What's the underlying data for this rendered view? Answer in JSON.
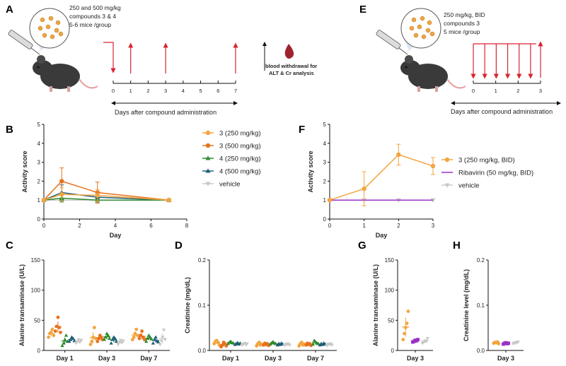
{
  "panel_letters": {
    "a": "A",
    "b": "B",
    "c": "C",
    "d": "D",
    "e": "E",
    "f": "F",
    "g": "G",
    "h": "H"
  },
  "schematic_a": {
    "dose_text": "250 and 500 mg/kg",
    "compound_text": "compounds 3 & 4",
    "group_text": "5-6 mice /group",
    "timeline_ticks": [
      "0",
      "1",
      "2",
      "3",
      "4",
      "5",
      "6",
      "7"
    ],
    "blood_text_1": "blood withdrawal for",
    "blood_text_2": "ALT & Cr analysis",
    "caption": "Days after compound administration"
  },
  "schematic_e": {
    "dose_text": "250 mg/kg, BID",
    "compound_text": "compounds 3",
    "group_text": "5 mice /group",
    "timeline_ticks": [
      "0",
      "1",
      "2",
      "3"
    ],
    "caption": "Days after compound administration"
  },
  "chart_data": [
    {
      "id": "B",
      "type": "line",
      "xlabel": "Day",
      "ylabel": "Activity score",
      "xlim": [
        0,
        8
      ],
      "ylim": [
        0,
        5
      ],
      "xticks": [
        "0",
        "2",
        "4",
        "6",
        "8"
      ],
      "yticks": [
        "0",
        "1",
        "2",
        "3",
        "4",
        "5"
      ],
      "series": [
        {
          "name": "3 (250 mg/kg)",
          "color": "#f2a541",
          "marker": "circle",
          "x": [
            0,
            1,
            3,
            7
          ],
          "y": [
            1,
            1.3,
            1.25,
            1
          ],
          "err": [
            0,
            0.35,
            0.3,
            0
          ]
        },
        {
          "name": "3 (500 mg/kg)",
          "color": "#e8711c",
          "marker": "circle",
          "x": [
            0,
            1,
            3,
            7
          ],
          "y": [
            1,
            2.0,
            1.4,
            1
          ],
          "err": [
            0,
            0.7,
            0.55,
            0
          ]
        },
        {
          "name": "4 (250 mg/kg)",
          "color": "#2e8b2e",
          "marker": "triangle",
          "x": [
            0,
            1,
            3,
            7
          ],
          "y": [
            1,
            1.1,
            1.0,
            1
          ],
          "err": [
            0,
            0.2,
            0.15,
            0
          ]
        },
        {
          "name": "4 (500 mg/kg)",
          "color": "#1f5f74",
          "marker": "triangle",
          "x": [
            0,
            1,
            3,
            7
          ],
          "y": [
            1,
            1.4,
            1.15,
            1
          ],
          "err": [
            0,
            0.4,
            0.3,
            0
          ]
        },
        {
          "name": "vehicle",
          "color": "#c8c8c8",
          "marker": "down-triangle",
          "x": [
            0,
            1,
            3,
            7
          ],
          "y": [
            1,
            1.0,
            1.0,
            1
          ],
          "err": [
            0,
            0.05,
            0.05,
            0
          ]
        }
      ]
    },
    {
      "id": "F",
      "type": "line",
      "xlabel": "Day",
      "ylabel": "Activity score",
      "xlim": [
        0,
        3
      ],
      "ylim": [
        0,
        5
      ],
      "xticks": [
        "0",
        "1",
        "2",
        "3"
      ],
      "yticks": [
        "0",
        "1",
        "2",
        "3",
        "4",
        "5"
      ],
      "series": [
        {
          "name": "3 (250 mg/kg, BID)",
          "color": "#f2a541",
          "marker": "circle",
          "x": [
            0,
            1,
            2,
            3
          ],
          "y": [
            1,
            1.6,
            3.4,
            2.8
          ],
          "err": [
            0,
            0.9,
            0.55,
            0.45
          ]
        },
        {
          "name": "Ribavirin (50 mg/kg, BID)",
          "color": "#9b30c9",
          "marker": "none",
          "x": [
            0,
            1,
            2,
            3
          ],
          "y": [
            1,
            1,
            1,
            1
          ],
          "err": [
            0,
            0,
            0,
            0
          ]
        },
        {
          "name": "vehicle",
          "color": "#c8c8c8",
          "marker": "down-triangle",
          "x": [
            0,
            1,
            2,
            3
          ],
          "y": [
            1,
            1,
            1,
            1
          ],
          "err": [
            0,
            0,
            0,
            0
          ]
        }
      ]
    },
    {
      "id": "C",
      "type": "scatter",
      "ylabel": "Alanine transaminase (U/L)",
      "ylim": [
        0,
        150
      ],
      "yticks": [
        "0",
        "50",
        "100",
        "150"
      ],
      "groups": [
        "Day 1",
        "Day 3",
        "Day 7"
      ],
      "series_colors": [
        "#f2a541",
        "#e8711c",
        "#2e8b2e",
        "#1f5f74",
        "#c8c8c8"
      ],
      "series_markers": [
        "circle",
        "circle",
        "triangle",
        "triangle",
        "down-triangle"
      ],
      "points": [
        [
          [
            22,
            28,
            30,
            35,
            25
          ],
          [
            32,
            40,
            55,
            38,
            30
          ],
          [
            8,
            12,
            18,
            25,
            15
          ],
          [
            15,
            18,
            22,
            20,
            16
          ],
          [
            12,
            15,
            18,
            14,
            17
          ]
        ],
        [
          [
            10,
            15,
            22,
            38,
            20
          ],
          [
            15,
            20,
            25,
            22,
            18
          ],
          [
            18,
            22,
            28,
            25,
            20
          ],
          [
            12,
            18,
            22,
            20,
            15
          ],
          [
            10,
            14,
            17,
            13,
            16
          ]
        ],
        [
          [
            18,
            22,
            28,
            35,
            25
          ],
          [
            20,
            25,
            32,
            22,
            18
          ],
          [
            15,
            20,
            25,
            22,
            19
          ],
          [
            12,
            18,
            22,
            16,
            14
          ],
          [
            10,
            16,
            22,
            34,
            18
          ]
        ]
      ]
    },
    {
      "id": "D",
      "type": "scatter",
      "ylabel": "Creatinine (mg/dL)",
      "ylim": [
        0,
        0.2
      ],
      "yticks": [
        "0.0",
        "0.1",
        "0.2"
      ],
      "groups": [
        "Day 1",
        "Day 3",
        "Day 7"
      ],
      "series_colors": [
        "#f2a541",
        "#e8711c",
        "#2e8b2e",
        "#1f5f74",
        "#c8c8c8"
      ],
      "series_markers": [
        "circle",
        "circle",
        "triangle",
        "triangle",
        "down-triangle"
      ],
      "points": [
        [
          [
            0.015,
            0.02,
            0.022,
            0.018,
            0.012
          ],
          [
            0.008,
            0.012,
            0.018,
            0.015,
            0.01
          ],
          [
            0.015,
            0.018,
            0.02,
            0.017,
            0.016
          ],
          [
            0.013,
            0.015,
            0.017,
            0.014,
            0.016
          ],
          [
            0.012,
            0.014,
            0.016,
            0.013,
            0.015
          ]
        ],
        [
          [
            0.01,
            0.015,
            0.018,
            0.012,
            0.014
          ],
          [
            0.012,
            0.016,
            0.013,
            0.015,
            0.011
          ],
          [
            0.014,
            0.017,
            0.019,
            0.016,
            0.015
          ],
          [
            0.012,
            0.015,
            0.013,
            0.016,
            0.014
          ],
          [
            0.011,
            0.014,
            0.013,
            0.015,
            0.012
          ]
        ],
        [
          [
            0.01,
            0.015,
            0.018,
            0.012,
            0.014
          ],
          [
            0.012,
            0.016,
            0.013,
            0.015,
            0.011
          ],
          [
            0.014,
            0.022,
            0.019,
            0.016,
            0.015
          ],
          [
            0.012,
            0.015,
            0.013,
            0.016,
            0.014
          ],
          [
            0.011,
            0.014,
            0.013,
            0.015,
            0.012
          ]
        ]
      ]
    },
    {
      "id": "G",
      "type": "scatter",
      "ylabel": "Alanine transaminase (U/L)",
      "ylim": [
        0,
        150
      ],
      "yticks": [
        "0",
        "50",
        "100",
        "150"
      ],
      "groups": [
        "Day 3"
      ],
      "series_colors": [
        "#f2a541",
        "#9b30c9",
        "#c8c8c8"
      ],
      "series_markers": [
        "circle",
        "square",
        "down-triangle"
      ],
      "points": [
        [
          [
            18,
            28,
            38,
            45,
            65
          ],
          [
            14,
            15,
            17,
            16,
            18
          ],
          [
            12,
            14,
            16,
            15,
            20
          ]
        ]
      ]
    },
    {
      "id": "H",
      "type": "scatter",
      "ylabel": "Creatinine level (mg/dL)",
      "ylim": [
        0,
        0.2
      ],
      "yticks": [
        "0.0",
        "0.1",
        "0.2"
      ],
      "groups": [
        "Day 3"
      ],
      "series_colors": [
        "#f2a541",
        "#9b30c9",
        "#c8c8c8"
      ],
      "series_markers": [
        "circle",
        "square",
        "down-triangle"
      ],
      "points": [
        [
          [
            0.016,
            0.018,
            0.017,
            0.019,
            0.015
          ],
          [
            0.014,
            0.016,
            0.017,
            0.015,
            0.016
          ],
          [
            0.015,
            0.017,
            0.016,
            0.018,
            0.019
          ]
        ]
      ]
    }
  ]
}
